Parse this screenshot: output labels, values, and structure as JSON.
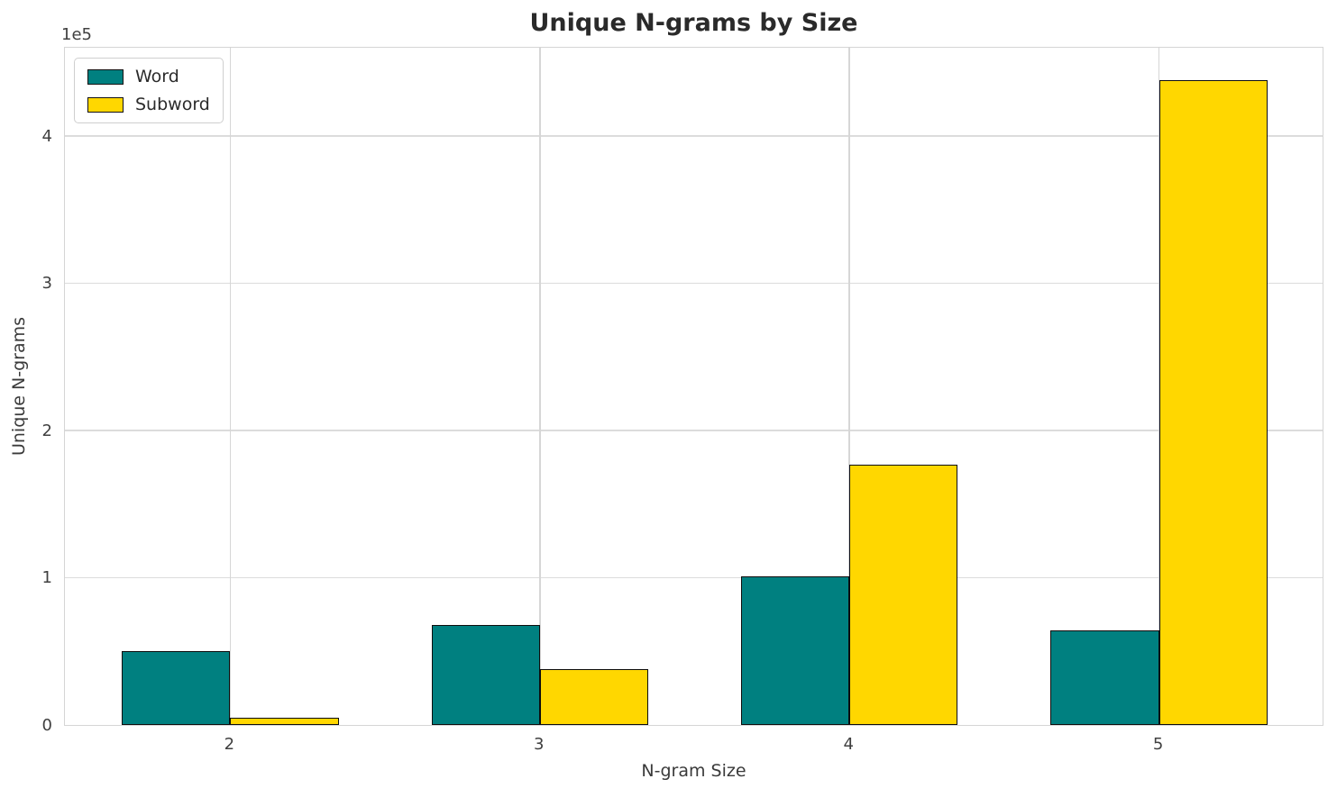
{
  "title": "Unique N-grams by Size",
  "axes": {
    "xlabel": "N-gram Size",
    "ylabel": "Unique N-grams",
    "offset_text": "1e5",
    "ytick_labels": [
      "0",
      "1",
      "2",
      "3",
      "4"
    ],
    "xtick_labels": [
      "2",
      "3",
      "4",
      "5"
    ]
  },
  "legend": {
    "items": [
      {
        "label": "Word",
        "color": "#008080"
      },
      {
        "label": "Subword",
        "color": "#FFD700"
      }
    ]
  },
  "colors": {
    "word_bar": "#008080",
    "subword_bar": "#FFD700",
    "bar_edge": "#0d0d0d",
    "grid": "#dcdcdc",
    "spine": "#d5d5d5"
  },
  "chart_data": {
    "type": "bar",
    "categories": [
      2,
      3,
      4,
      5
    ],
    "series": [
      {
        "name": "Word",
        "color": "#008080",
        "values": [
          50000,
          68000,
          101000,
          64000
        ]
      },
      {
        "name": "Subword",
        "color": "#FFD700",
        "values": [
          5000,
          38000,
          177000,
          438000
        ]
      }
    ],
    "title": "Unique N-grams by Size",
    "xlabel": "N-gram Size",
    "ylabel": "Unique N-grams",
    "ylim": [
      0,
      461000
    ],
    "xlim": [
      1.466,
      5.534
    ],
    "yticks": [
      0,
      100000,
      200000,
      300000,
      400000
    ],
    "y_offset_label": "1e5",
    "bar_width": 0.35,
    "grid": true,
    "legend_position": "upper left"
  }
}
